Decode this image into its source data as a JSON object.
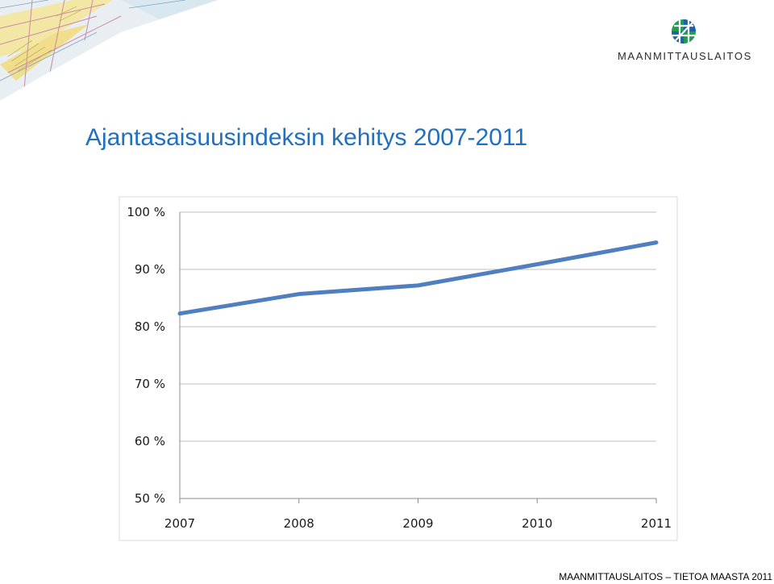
{
  "header": {
    "logo_text": "MAANMITTAUSLAITOS",
    "title": "Ajantasaisuusindeksin kehitys 2007-2011"
  },
  "footer": {
    "text": "MAANMITTAUSLAITOS – TIETOA MAASTA 2011"
  },
  "colors": {
    "title": "#1f6fc2",
    "line": "#4f7fbf",
    "grid": "#bfbfbf",
    "logo_green": "#1e9e4a",
    "logo_blue": "#1f5fa8"
  },
  "icons": {
    "logo": "maanmittauslaitos-logo-icon",
    "map": "terrain-map-icon"
  },
  "chart_data": {
    "type": "line",
    "title": "",
    "xlabel": "",
    "ylabel": "",
    "categories": [
      "2007",
      "2008",
      "2009",
      "2010",
      "2011"
    ],
    "values": [
      82.3,
      85.7,
      87.2,
      90.9,
      94.7
    ],
    "ylim": [
      50,
      100
    ],
    "yticks": [
      50,
      60,
      70,
      80,
      90,
      100
    ],
    "ytick_labels": [
      "50 %",
      "60 %",
      "70 %",
      "80 %",
      "90 %",
      "100 %"
    ],
    "grid": true,
    "legend": "none"
  }
}
